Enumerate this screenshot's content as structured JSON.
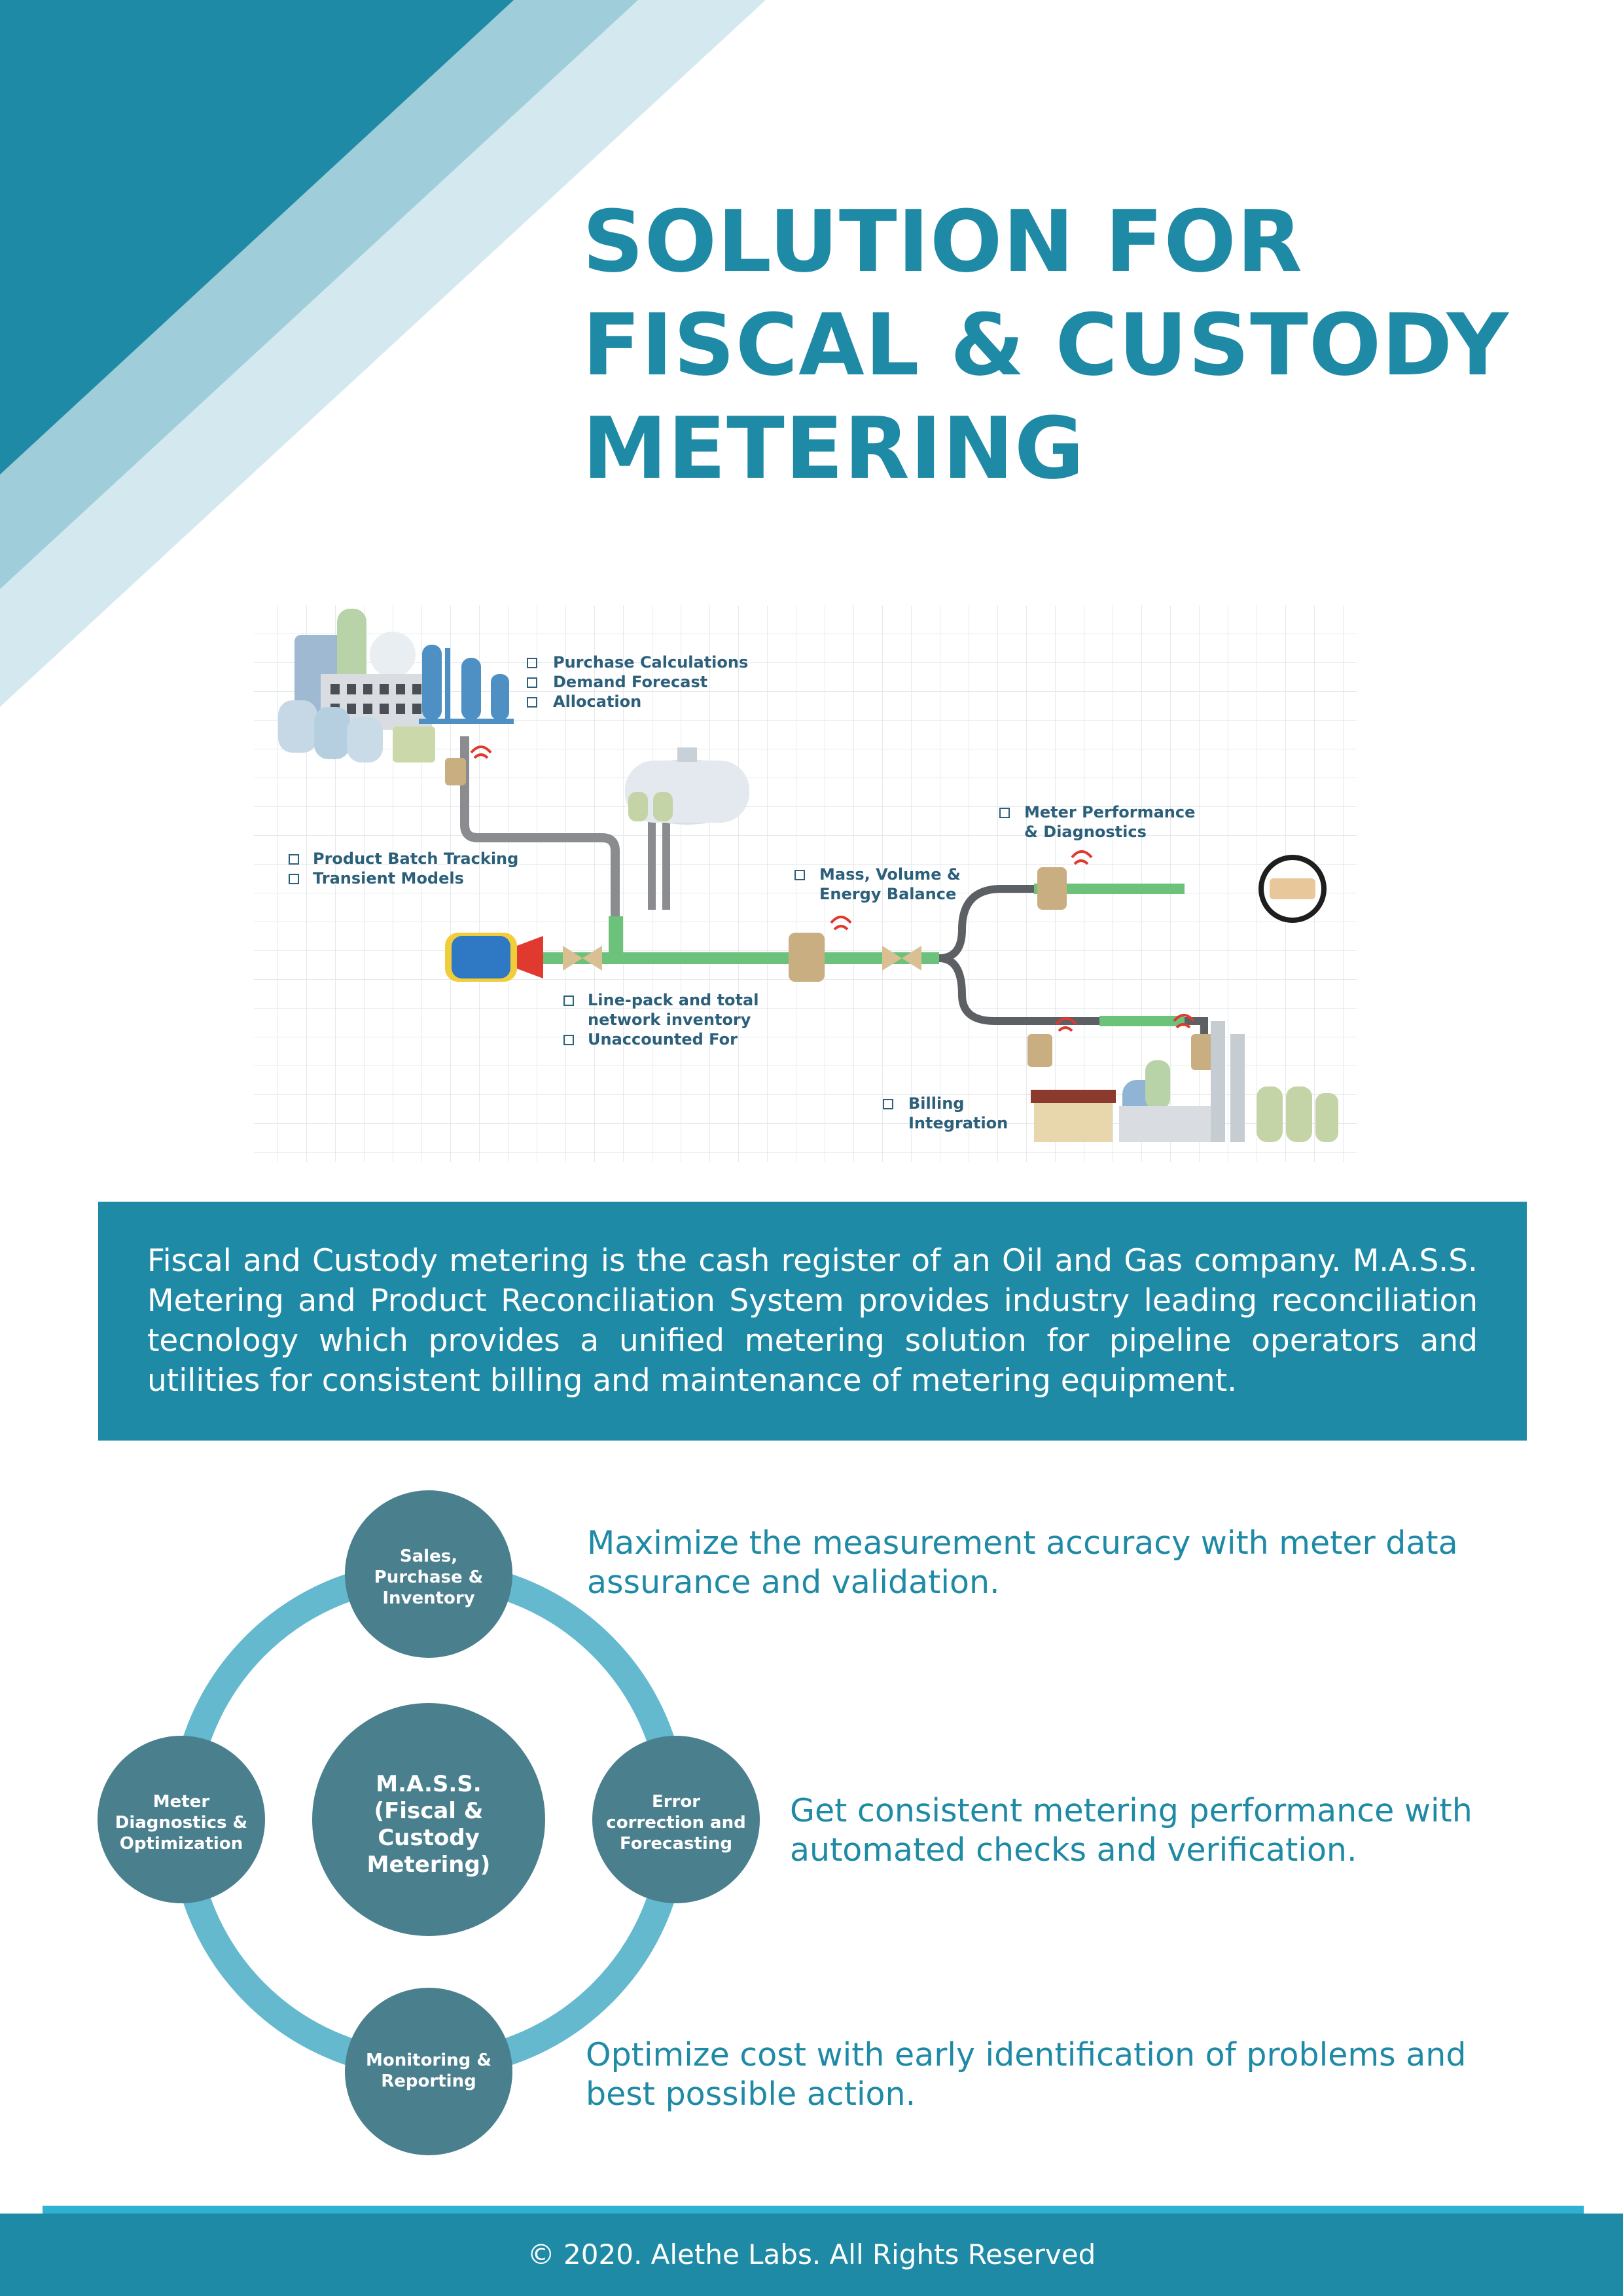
{
  "colors": {
    "primary": "#1f8aa5",
    "band_mid": "#9fcdda",
    "band_light": "#d3e9ef",
    "node": "#4a7f8e",
    "ring": "#65b9cf",
    "pipe": "#6cc27a",
    "footer_line": "#2fb2cf"
  },
  "title": {
    "line1": "SOLUTION FOR",
    "line2": "FISCAL & CUSTODY",
    "line3": "METERING"
  },
  "diagram": {
    "labels": {
      "purchase_calc": "Purchase Calculations",
      "demand_forecast": "Demand Forecast",
      "allocation": "Allocation",
      "product_batch": "Product Batch Tracking",
      "transient_models": "Transient Models",
      "mass_balance_1": "Mass, Volume &",
      "mass_balance_2": "Energy Balance",
      "meter_perf_1": "Meter Performance",
      "meter_perf_2": "& Diagnostics",
      "linepack_1": "Line-pack and total",
      "linepack_2": "network inventory",
      "unaccounted": "Unaccounted For",
      "billing_1": "Billing",
      "billing_2": "Integration"
    }
  },
  "description": "Fiscal and Custody metering is the cash register of an Oil and Gas company. M.A.S.S. Metering and Product Reconciliation System provides industry leading reconciliation tecnology which provides a unified metering solution for pipeline operators and utilities for consistent billing and maintenance of metering equipment.",
  "cycle": {
    "center": [
      "M.A.S.S.",
      "(Fiscal &",
      "Custody",
      "Metering)"
    ],
    "top": [
      "Sales,",
      "Purchase &",
      "Inventory"
    ],
    "right": [
      "Error",
      "correction and",
      "Forecasting"
    ],
    "bottom": [
      "Monitoring &",
      "Reporting"
    ],
    "left": [
      "Meter",
      "Diagnostics &",
      "Optimization"
    ]
  },
  "benefits": [
    {
      "line1": "Maximize the measurement accuracy with meter data",
      "line2": "assurance and validation."
    },
    {
      "line1": "Get consistent metering performance with",
      "line2": "automated checks and verification."
    },
    {
      "line1": "Optimize cost with early identification of problems and",
      "line2": "best possible action."
    }
  ],
  "footer": "© 2020. Alethe Labs. All Rights Reserved"
}
